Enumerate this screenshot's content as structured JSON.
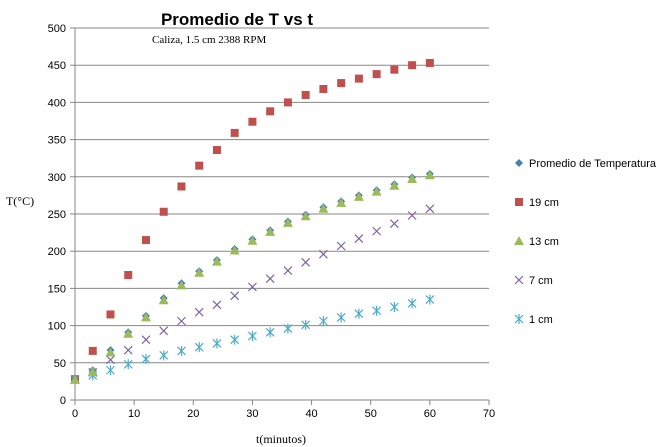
{
  "chart_data": {
    "type": "scatter",
    "title": "Promedio de T vs t",
    "subtitle": "Caliza, 1.5 cm 2388 RPM",
    "xlabel": "t(minutos)",
    "ylabel": "T(°C)",
    "xlim": [
      0,
      70
    ],
    "ylim": [
      0,
      500
    ],
    "xticks": [
      0,
      10,
      20,
      30,
      40,
      50,
      60,
      70
    ],
    "yticks": [
      0,
      50,
      100,
      150,
      200,
      250,
      300,
      350,
      400,
      450,
      500
    ],
    "grid": "horizontal",
    "legend_position": "right",
    "series": [
      {
        "name": "Promedio de Temperatura",
        "marker": "diamond",
        "color": "#4a7ebb",
        "x": [
          0,
          3,
          6,
          9,
          12,
          15,
          18,
          21,
          24,
          27,
          30,
          33,
          36,
          39,
          42,
          45,
          48,
          51,
          54,
          57,
          60
        ],
        "y": [
          27,
          40,
          67,
          91,
          113,
          137,
          157,
          173,
          188,
          203,
          216,
          228,
          240,
          249,
          259,
          267,
          275,
          282,
          290,
          299,
          304
        ]
      },
      {
        "name": "19 cm",
        "marker": "square",
        "color": "#c0504d",
        "x": [
          0,
          3,
          6,
          9,
          12,
          15,
          18,
          21,
          24,
          27,
          30,
          33,
          36,
          39,
          42,
          45,
          48,
          51,
          54,
          57,
          60
        ],
        "y": [
          28,
          66,
          115,
          168,
          215,
          253,
          287,
          315,
          336,
          359,
          374,
          388,
          400,
          410,
          418,
          426,
          432,
          438,
          444,
          450,
          453
        ]
      },
      {
        "name": "13 cm",
        "marker": "triangle",
        "color": "#9bbb59",
        "x": [
          0,
          3,
          6,
          9,
          12,
          15,
          18,
          21,
          24,
          27,
          30,
          33,
          36,
          39,
          42,
          45,
          48,
          51,
          54,
          57,
          60
        ],
        "y": [
          27,
          38,
          64,
          89,
          111,
          134,
          154,
          171,
          186,
          201,
          214,
          226,
          238,
          247,
          257,
          265,
          273,
          280,
          288,
          297,
          302
        ]
      },
      {
        "name": "7 cm",
        "marker": "x",
        "color": "#8064a2",
        "x": [
          0,
          3,
          6,
          9,
          12,
          15,
          18,
          21,
          24,
          27,
          30,
          33,
          36,
          39,
          42,
          45,
          48,
          51,
          54,
          57,
          60
        ],
        "y": [
          27,
          37,
          54,
          67,
          81,
          93,
          106,
          118,
          128,
          140,
          152,
          163,
          174,
          185,
          196,
          207,
          217,
          227,
          237,
          248,
          257
        ]
      },
      {
        "name": "1 cm",
        "marker": "asterisk",
        "color": "#4bacc6",
        "x": [
          0,
          3,
          6,
          9,
          12,
          15,
          18,
          21,
          24,
          27,
          30,
          33,
          36,
          39,
          42,
          45,
          48,
          51,
          54,
          57,
          60
        ],
        "y": [
          28,
          33,
          40,
          48,
          55,
          60,
          66,
          71,
          76,
          81,
          86,
          91,
          96,
          101,
          106,
          111,
          116,
          120,
          125,
          130,
          135
        ]
      }
    ]
  }
}
